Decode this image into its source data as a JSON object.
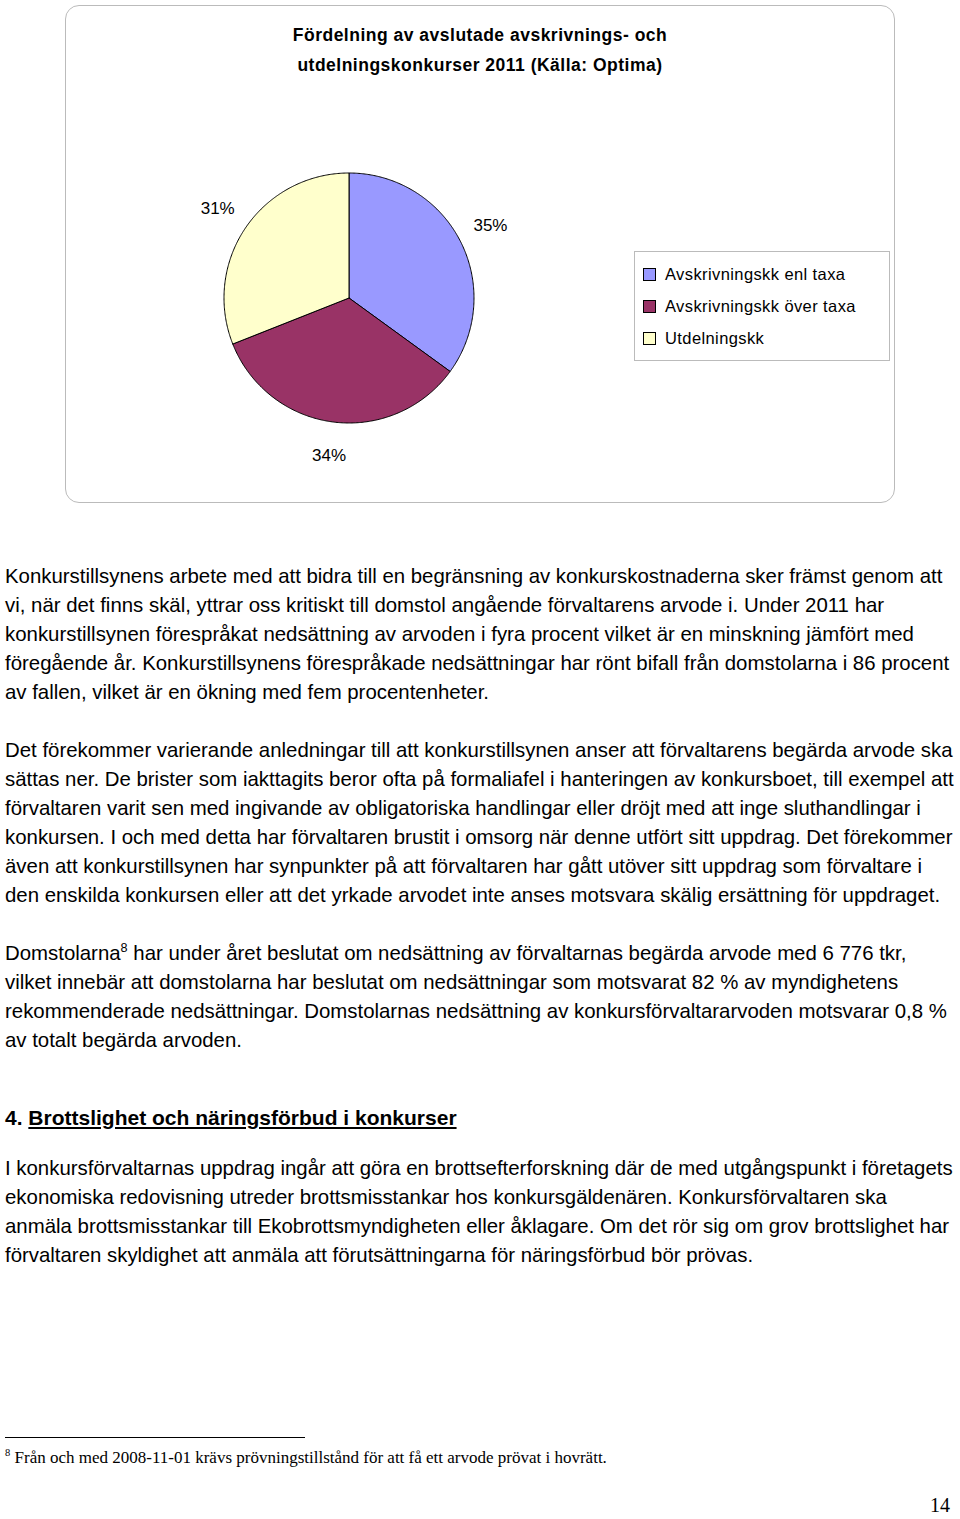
{
  "chart_data": {
    "type": "pie",
    "title": "Fördelning av avslutade avskrivnings- och utdelningskonkurser 2011 (Källa: Optima)",
    "categories": [
      "Avskrivningskk enl taxa",
      "Avskrivningskk över taxa",
      "Utdelningskk"
    ],
    "values": [
      35,
      34,
      31
    ],
    "value_labels": [
      "35%",
      "34%",
      "31%"
    ],
    "colors": [
      "#9999ff",
      "#993366",
      "#ffffcc"
    ],
    "data_labels": true,
    "legend": "right"
  },
  "document": {
    "paragraphs": [
      {
        "text": "Konkurstillsynens arbete med att bidra till en begränsning av konkurskostnaderna sker främst genom att vi, när det finns skäl, yttrar oss kritiskt till domstol angående förvaltarens arvode i. Under 2011 har konkurstillsynen förespråkat nedsättning av arvoden i fyra procent vilket är en minskning jämfört med föregående år. Konkurstillsynens förespråkade nedsättningar har rönt bifall från domstolarna i 86 procent av fallen, vilket är en ökning med fem procentenheter."
      },
      {
        "text": "Det förekommer varierande anledningar till att konkurstillsynen anser att förvaltarens begärda arvode ska sättas ner. De brister som iakttagits beror ofta på formaliafel i hanteringen av konkursboet, till exempel att förvaltaren varit sen med ingivande av obligatoriska handlingar eller dröjt med att inge sluthandlingar i konkursen. I och med detta har förvaltaren brustit i omsorg när denne utfört sitt uppdrag. Det förekommer även att konkurstillsynen har synpunkter på att förvaltaren har gått utöver sitt uppdrag som förvaltare i den enskilda konkursen eller att det yrkade arvodet inte anses motsvara skälig ersättning för uppdraget."
      },
      {
        "text": "Domstolarna",
        "footnote_ref": "8",
        "after": " har under året beslutat om nedsättning av förvaltarnas begärda arvode med 6 776 tkr, vilket innebär att domstolarna har beslutat om nedsättningar som motsvarat 82 % av myndighetens rekommenderade nedsättningar. Domstolarnas nedsättning av konkursförvaltararvoden motsvarar 0,8 % av totalt begärda arvoden."
      }
    ],
    "section": {
      "number": "4.",
      "title": "Brottslighet och näringsförbud i konkurser",
      "paragraphs": [
        {
          "text": "I konkursförvaltarnas uppdrag ingår att göra en brottsefterforskning där de med utgångspunkt i företagets ekonomiska redovisning utreder brottsmisstankar hos konkursgäldenären. Konkursförvaltaren ska anmäla brottsmisstankar till Ekobrottsmyndigheten eller åklagare. Om det rör sig om grov brottslighet har förvaltaren skyldighet att anmäla att förutsättningarna för näringsförbud bör prövas."
        }
      ]
    },
    "footnote": {
      "mark": "8",
      "text": "Från och med 2008-11-01 krävs prövningstillstånd för att få ett arvode prövat i hovrätt."
    },
    "page_number": "14"
  }
}
